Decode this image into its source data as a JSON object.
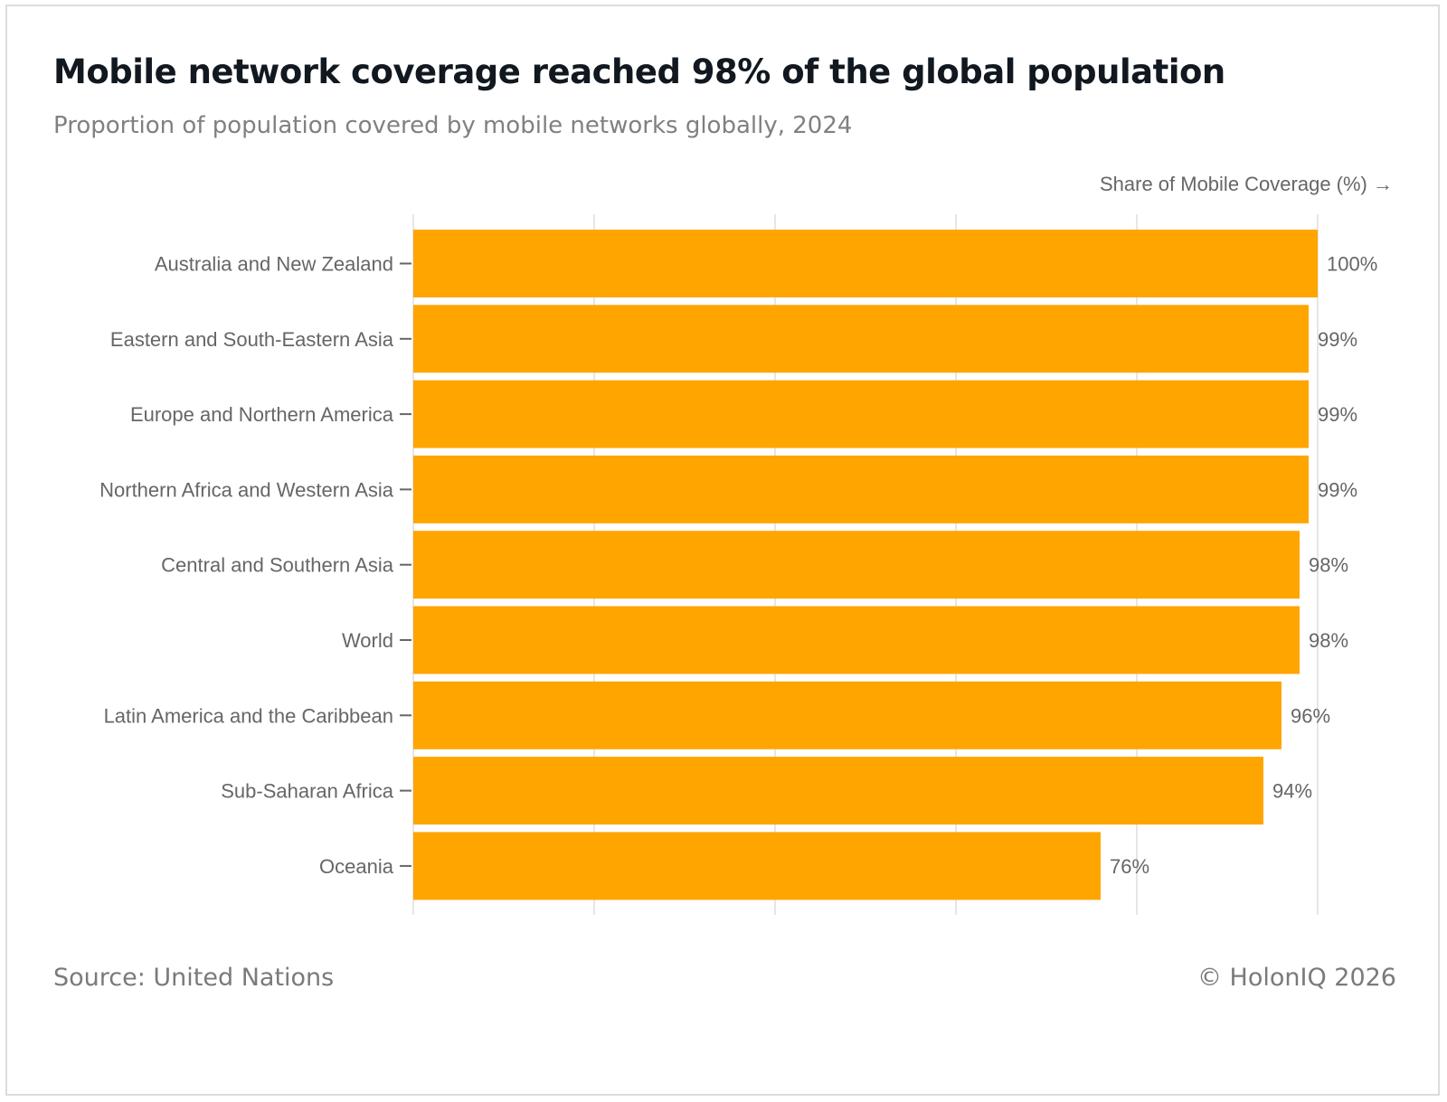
{
  "header": {
    "title": "Mobile network coverage reached 98% of the global population",
    "subtitle": "Proportion of population covered by mobile networks globally, 2024"
  },
  "footer": {
    "source": "Source: United Nations",
    "copyright": "© HolonIQ 2026"
  },
  "colors": {
    "bar": "#FFA500",
    "grid": "#e6e6e6",
    "text": "#666666"
  },
  "chart_data": {
    "type": "bar",
    "orientation": "horizontal",
    "title": "Mobile network coverage reached 98% of the global population",
    "subtitle": "Proportion of population covered by mobile networks globally, 2024",
    "xlabel": "Share of Mobile Coverage (%) →",
    "ylabel": "",
    "xlim": [
      0,
      100
    ],
    "grid": true,
    "categories": [
      "Australia and New Zealand",
      "Eastern and South-Eastern Asia",
      "Europe and Northern America",
      "Northern Africa and Western Asia",
      "Central and Southern Asia",
      "World",
      "Latin America and the Caribbean",
      "Sub-Saharan Africa",
      "Oceania"
    ],
    "values": [
      100,
      99,
      99,
      99,
      98,
      98,
      96,
      94,
      76
    ],
    "value_labels": [
      "100%",
      "99%",
      "99%",
      "99%",
      "98%",
      "98%",
      "96%",
      "94%",
      "76%"
    ]
  }
}
